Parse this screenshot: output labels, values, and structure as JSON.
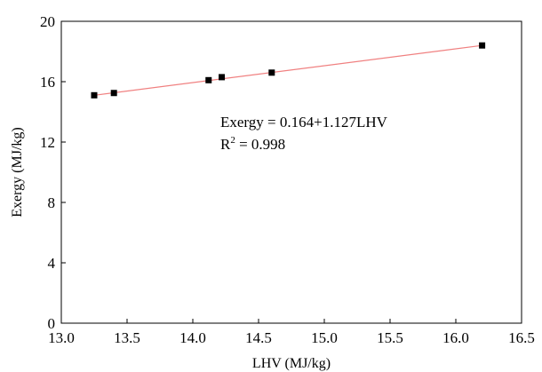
{
  "chart_data": {
    "type": "scatter",
    "title": "",
    "xlabel": "LHV (MJ/kg)",
    "ylabel": "Exergy (MJ/kg)",
    "xlim": [
      13.0,
      16.5
    ],
    "ylim": [
      0,
      20
    ],
    "x_ticks": [
      "13.0",
      "13.5",
      "14.0",
      "14.5",
      "15.0",
      "15.5",
      "16.0",
      "16.5"
    ],
    "y_ticks": [
      "0",
      "4",
      "8",
      "12",
      "16",
      "20"
    ],
    "grid": false,
    "legend": "none",
    "series": [
      {
        "points": [
          {
            "x": 13.25,
            "y": 15.1
          },
          {
            "x": 13.4,
            "y": 15.25
          },
          {
            "x": 14.12,
            "y": 16.1
          },
          {
            "x": 14.22,
            "y": 16.3
          },
          {
            "x": 14.6,
            "y": 16.6
          },
          {
            "x": 16.2,
            "y": 18.4
          }
        ],
        "marker_color": "#000000"
      }
    ],
    "fit_line": {
      "x": [
        13.25,
        16.2
      ],
      "y": [
        15.1,
        18.4
      ],
      "color": "#f08080"
    },
    "annotation": {
      "equation": "Exergy = 0.164+1.127LHV",
      "r2_prefix": "R",
      "r2_exponent": "2",
      "r2_suffix": " = 0.998"
    }
  }
}
